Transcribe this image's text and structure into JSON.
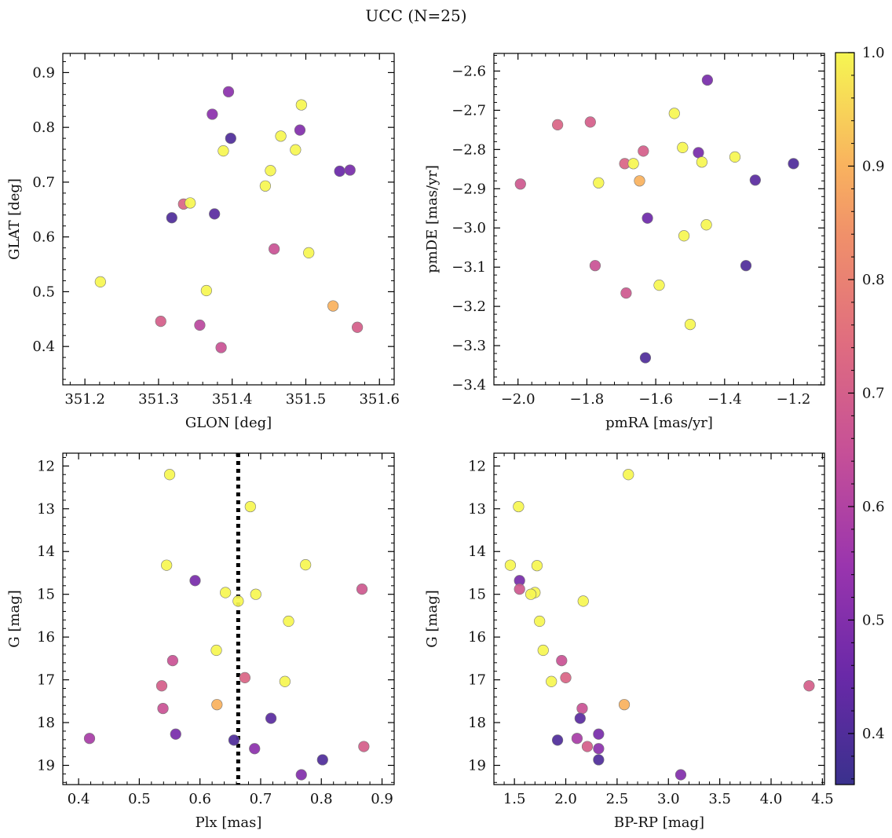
{
  "figure": {
    "title": "UCC (N=25)"
  },
  "colorbar": {
    "vmin": 0.355,
    "vmax": 1.0,
    "ticks": [
      0.4,
      0.5,
      0.6,
      0.7,
      0.8,
      0.9,
      1.0
    ],
    "tick_labels": [
      "0.4",
      "0.5",
      "0.6",
      "0.7",
      "0.8",
      "0.9",
      "1.0"
    ]
  },
  "chart_data": [
    {
      "type": "scatter",
      "id": "glon-glat",
      "xlabel": "GLON [deg]",
      "ylabel": "GLAT [deg]",
      "xlim": [
        351.17,
        351.62
      ],
      "ylim": [
        0.33,
        0.935
      ],
      "xticks": [
        351.2,
        351.3,
        351.4,
        351.5,
        351.6
      ],
      "xtick_labels": [
        "351.2",
        "351.3",
        "351.4",
        "351.5",
        "351.6"
      ],
      "yticks": [
        0.4,
        0.5,
        0.6,
        0.7,
        0.8,
        0.9
      ],
      "ytick_labels": [
        "0.4",
        "0.5",
        "0.6",
        "0.7",
        "0.8",
        "0.9"
      ],
      "y_inverted": false,
      "points": [
        {
          "x": 351.395,
          "y": 0.865,
          "c": 0.52
        },
        {
          "x": 351.373,
          "y": 0.824,
          "c": 0.52
        },
        {
          "x": 351.494,
          "y": 0.841,
          "c": 1.0
        },
        {
          "x": 351.398,
          "y": 0.78,
          "c": 0.4
        },
        {
          "x": 351.492,
          "y": 0.795,
          "c": 0.5
        },
        {
          "x": 351.466,
          "y": 0.784,
          "c": 1.0
        },
        {
          "x": 351.388,
          "y": 0.757,
          "c": 1.0
        },
        {
          "x": 351.486,
          "y": 0.759,
          "c": 1.0
        },
        {
          "x": 351.452,
          "y": 0.721,
          "c": 1.0
        },
        {
          "x": 351.546,
          "y": 0.72,
          "c": 0.45
        },
        {
          "x": 351.56,
          "y": 0.722,
          "c": 0.48
        },
        {
          "x": 351.445,
          "y": 0.693,
          "c": 1.0
        },
        {
          "x": 351.334,
          "y": 0.66,
          "c": 0.72
        },
        {
          "x": 351.343,
          "y": 0.662,
          "c": 1.0
        },
        {
          "x": 351.318,
          "y": 0.635,
          "c": 0.4
        },
        {
          "x": 351.376,
          "y": 0.642,
          "c": 0.42
        },
        {
          "x": 351.457,
          "y": 0.578,
          "c": 0.66
        },
        {
          "x": 351.504,
          "y": 0.571,
          "c": 1.0
        },
        {
          "x": 351.221,
          "y": 0.518,
          "c": 1.0
        },
        {
          "x": 351.365,
          "y": 0.502,
          "c": 1.0
        },
        {
          "x": 351.537,
          "y": 0.474,
          "c": 0.9
        },
        {
          "x": 351.303,
          "y": 0.446,
          "c": 0.7
        },
        {
          "x": 351.356,
          "y": 0.439,
          "c": 0.62
        },
        {
          "x": 351.57,
          "y": 0.435,
          "c": 0.7
        },
        {
          "x": 351.385,
          "y": 0.398,
          "c": 0.66
        }
      ]
    },
    {
      "type": "scatter",
      "id": "pmra-pmde",
      "xlabel": "pmRA [mas/yr]",
      "ylabel": "pmDE [mas/yr]",
      "xlim": [
        -2.07,
        -1.11
      ],
      "ylim": [
        -3.4,
        -2.555
      ],
      "xticks": [
        -2.0,
        -1.8,
        -1.6,
        -1.4,
        -1.2
      ],
      "xtick_labels": [
        "−2.0",
        "−1.8",
        "−1.6",
        "−1.4",
        "−1.2"
      ],
      "yticks": [
        -3.4,
        -3.3,
        -3.2,
        -3.1,
        -3.0,
        -2.9,
        -2.8,
        -2.7,
        -2.6
      ],
      "ytick_labels": [
        "−3.4",
        "−3.3",
        "−3.2",
        "−3.1",
        "−3.0",
        "−2.9",
        "−2.8",
        "−2.7",
        "−2.6"
      ],
      "y_inverted": false,
      "points": [
        {
          "x": -1.45,
          "y": -2.623,
          "c": 0.48
        },
        {
          "x": -1.546,
          "y": -2.708,
          "c": 1.0
        },
        {
          "x": -1.885,
          "y": -2.737,
          "c": 0.72
        },
        {
          "x": -1.79,
          "y": -2.73,
          "c": 0.7
        },
        {
          "x": -1.522,
          "y": -2.795,
          "c": 1.0
        },
        {
          "x": -1.636,
          "y": -2.804,
          "c": 0.7
        },
        {
          "x": -1.476,
          "y": -2.808,
          "c": 0.48
        },
        {
          "x": -1.37,
          "y": -2.819,
          "c": 1.0
        },
        {
          "x": -1.466,
          "y": -2.832,
          "c": 1.0
        },
        {
          "x": -1.69,
          "y": -2.836,
          "c": 0.72
        },
        {
          "x": -1.665,
          "y": -2.836,
          "c": 1.0
        },
        {
          "x": -1.2,
          "y": -2.836,
          "c": 0.4
        },
        {
          "x": -1.993,
          "y": -2.888,
          "c": 0.68
        },
        {
          "x": -1.766,
          "y": -2.885,
          "c": 1.0
        },
        {
          "x": -1.647,
          "y": -2.88,
          "c": 0.9
        },
        {
          "x": -1.311,
          "y": -2.878,
          "c": 0.42
        },
        {
          "x": -1.624,
          "y": -2.975,
          "c": 0.46
        },
        {
          "x": -1.453,
          "y": -2.992,
          "c": 1.0
        },
        {
          "x": -1.518,
          "y": -3.02,
          "c": 1.0
        },
        {
          "x": -1.776,
          "y": -3.096,
          "c": 0.66
        },
        {
          "x": -1.338,
          "y": -3.096,
          "c": 0.4
        },
        {
          "x": -1.59,
          "y": -3.146,
          "c": 1.0
        },
        {
          "x": -1.686,
          "y": -3.166,
          "c": 0.68
        },
        {
          "x": -1.5,
          "y": -3.246,
          "c": 1.0
        },
        {
          "x": -1.63,
          "y": -3.331,
          "c": 0.4
        }
      ]
    },
    {
      "type": "scatter",
      "id": "plx-g",
      "xlabel": "Plx [mas]",
      "ylabel": "G [mag]",
      "xlim": [
        0.374,
        0.92
      ],
      "ylim": [
        19.45,
        11.7
      ],
      "xticks": [
        0.4,
        0.5,
        0.6,
        0.7,
        0.8,
        0.9
      ],
      "xtick_labels": [
        "0.4",
        "0.5",
        "0.6",
        "0.7",
        "0.8",
        "0.9"
      ],
      "yticks": [
        12,
        13,
        14,
        15,
        16,
        17,
        18,
        19
      ],
      "ytick_labels": [
        "12",
        "13",
        "14",
        "15",
        "16",
        "17",
        "18",
        "19"
      ],
      "y_inverted": true,
      "vline": {
        "x": 0.663
      },
      "points": [
        {
          "x": 0.55,
          "y": 12.2,
          "c": 1.0
        },
        {
          "x": 0.683,
          "y": 12.95,
          "c": 1.0
        },
        {
          "x": 0.545,
          "y": 14.32,
          "c": 1.0
        },
        {
          "x": 0.774,
          "y": 14.31,
          "c": 1.0
        },
        {
          "x": 0.592,
          "y": 14.68,
          "c": 0.48
        },
        {
          "x": 0.867,
          "y": 14.88,
          "c": 0.68
        },
        {
          "x": 0.642,
          "y": 14.96,
          "c": 1.0
        },
        {
          "x": 0.692,
          "y": 15.0,
          "c": 1.0
        },
        {
          "x": 0.663,
          "y": 15.16,
          "c": 1.0
        },
        {
          "x": 0.746,
          "y": 15.63,
          "c": 1.0
        },
        {
          "x": 0.627,
          "y": 16.31,
          "c": 1.0
        },
        {
          "x": 0.555,
          "y": 16.55,
          "c": 0.66
        },
        {
          "x": 0.674,
          "y": 16.95,
          "c": 0.72
        },
        {
          "x": 0.74,
          "y": 17.04,
          "c": 1.0
        },
        {
          "x": 0.537,
          "y": 17.14,
          "c": 0.7
        },
        {
          "x": 0.628,
          "y": 17.58,
          "c": 0.9
        },
        {
          "x": 0.539,
          "y": 17.67,
          "c": 0.66
        },
        {
          "x": 0.717,
          "y": 17.9,
          "c": 0.42
        },
        {
          "x": 0.56,
          "y": 18.27,
          "c": 0.48
        },
        {
          "x": 0.418,
          "y": 18.37,
          "c": 0.58
        },
        {
          "x": 0.656,
          "y": 18.41,
          "c": 0.4
        },
        {
          "x": 0.87,
          "y": 18.56,
          "c": 0.7
        },
        {
          "x": 0.69,
          "y": 18.61,
          "c": 0.52
        },
        {
          "x": 0.802,
          "y": 18.87,
          "c": 0.4
        },
        {
          "x": 0.767,
          "y": 19.22,
          "c": 0.5
        }
      ]
    },
    {
      "type": "scatter",
      "id": "bprp-g",
      "xlabel": "BP-RP [mag]",
      "ylabel": "G [mag]",
      "xlim": [
        1.3,
        4.52
      ],
      "ylim": [
        19.45,
        11.7
      ],
      "xticks": [
        1.5,
        2.0,
        2.5,
        3.0,
        3.5,
        4.0,
        4.5
      ],
      "xtick_labels": [
        "1.5",
        "2.0",
        "2.5",
        "3.0",
        "3.5",
        "4.0",
        "4.5"
      ],
      "yticks": [
        12,
        13,
        14,
        15,
        16,
        17,
        18,
        19
      ],
      "ytick_labels": [
        "12",
        "13",
        "14",
        "15",
        "16",
        "17",
        "18",
        "19"
      ],
      "y_inverted": true,
      "points": [
        {
          "x": 2.61,
          "y": 12.2,
          "c": 1.0
        },
        {
          "x": 1.54,
          "y": 12.95,
          "c": 1.0
        },
        {
          "x": 1.46,
          "y": 14.32,
          "c": 1.0
        },
        {
          "x": 1.72,
          "y": 14.33,
          "c": 1.0
        },
        {
          "x": 1.55,
          "y": 14.68,
          "c": 0.48
        },
        {
          "x": 1.55,
          "y": 14.88,
          "c": 0.68
        },
        {
          "x": 1.7,
          "y": 14.96,
          "c": 1.0
        },
        {
          "x": 1.66,
          "y": 15.0,
          "c": 1.0
        },
        {
          "x": 2.17,
          "y": 15.16,
          "c": 1.0
        },
        {
          "x": 1.745,
          "y": 15.63,
          "c": 1.0
        },
        {
          "x": 1.78,
          "y": 16.31,
          "c": 1.0
        },
        {
          "x": 1.96,
          "y": 16.55,
          "c": 0.66
        },
        {
          "x": 2.0,
          "y": 16.95,
          "c": 0.72
        },
        {
          "x": 1.86,
          "y": 17.04,
          "c": 1.0
        },
        {
          "x": 4.37,
          "y": 17.14,
          "c": 0.7
        },
        {
          "x": 2.57,
          "y": 17.58,
          "c": 0.9
        },
        {
          "x": 2.16,
          "y": 17.67,
          "c": 0.66
        },
        {
          "x": 2.14,
          "y": 17.9,
          "c": 0.42
        },
        {
          "x": 2.32,
          "y": 18.27,
          "c": 0.48
        },
        {
          "x": 2.11,
          "y": 18.37,
          "c": 0.58
        },
        {
          "x": 1.92,
          "y": 18.41,
          "c": 0.4
        },
        {
          "x": 2.21,
          "y": 18.56,
          "c": 0.7
        },
        {
          "x": 2.32,
          "y": 18.61,
          "c": 0.52
        },
        {
          "x": 2.32,
          "y": 18.87,
          "c": 0.4
        },
        {
          "x": 3.12,
          "y": 19.22,
          "c": 0.5
        }
      ]
    }
  ]
}
